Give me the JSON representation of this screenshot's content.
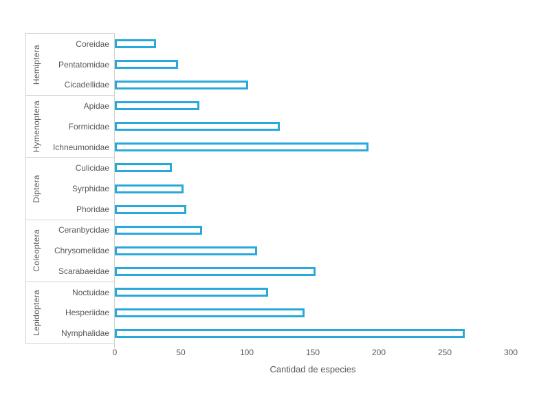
{
  "chart_data": {
    "type": "bar",
    "orientation": "horizontal",
    "title": "",
    "xlabel": "Cantidad de especies",
    "ylabel": "",
    "xlim": [
      0,
      300
    ],
    "x_ticks": [
      0,
      50,
      100,
      150,
      200,
      250,
      300
    ],
    "grid": false,
    "legend": "none",
    "bar_fill_color": "#ffffff",
    "bar_border_color": "#29a8dc",
    "axis_line_color": "#d2d2d2",
    "text_color": "#595959",
    "groups": [
      {
        "order": "Hemiptera",
        "families": [
          {
            "label": "Coreidae",
            "value": 31
          },
          {
            "label": "Pentatomidae",
            "value": 48
          },
          {
            "label": "Cicadellidae",
            "value": 101
          }
        ]
      },
      {
        "order": "Hymenoptera",
        "families": [
          {
            "label": "Apidae",
            "value": 64
          },
          {
            "label": "Formicidae",
            "value": 125
          },
          {
            "label": "Ichneumonidae",
            "value": 192
          }
        ]
      },
      {
        "order": "Diptera",
        "families": [
          {
            "label": "Culicidae",
            "value": 43
          },
          {
            "label": "Syrphidae",
            "value": 52
          },
          {
            "label": "Phoridae",
            "value": 54
          }
        ]
      },
      {
        "order": "Coleoptera",
        "families": [
          {
            "label": "Ceranbycidae",
            "value": 66
          },
          {
            "label": "Chrysomelidae",
            "value": 108
          },
          {
            "label": "Scarabaeidae",
            "value": 152
          }
        ]
      },
      {
        "order": "Lepidoptera",
        "families": [
          {
            "label": "Noctuidae",
            "value": 116
          },
          {
            "label": "Hesperiidae",
            "value": 144
          },
          {
            "label": "Nymphalidae",
            "value": 265
          }
        ]
      }
    ]
  }
}
